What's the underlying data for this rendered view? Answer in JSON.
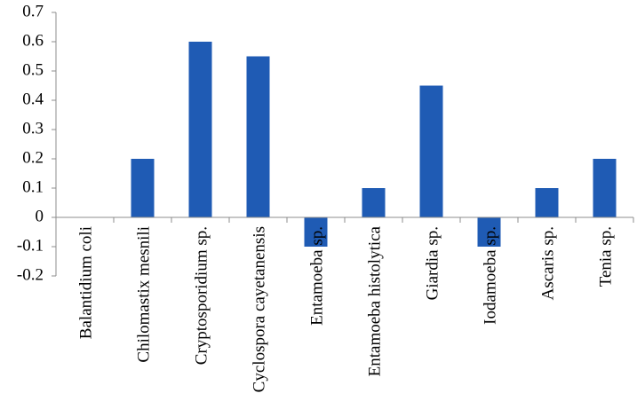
{
  "chart_data": {
    "type": "bar",
    "categories": [
      "Balantidium coli",
      "Chilomastix mesnili",
      "Cryptosporidium sp.",
      "Cyclospora cayetanensis",
      "Entamoeba sp.",
      "Entamoeba histolytica",
      "Giardia sp.",
      "Iodamoeba sp.",
      "Ascaris sp.",
      "Tenia sp."
    ],
    "values": [
      0,
      0.2,
      0.6,
      0.55,
      -0.1,
      0.1,
      0.45,
      -0.1,
      0.1,
      0.2
    ],
    "color": "#1f5bb4",
    "ylim": [
      -0.2,
      0.7
    ],
    "yticks": [
      -0.2,
      -0.1,
      0,
      0.1,
      0.2,
      0.3,
      0.4,
      0.5,
      0.6,
      0.7
    ],
    "grid": false
  }
}
